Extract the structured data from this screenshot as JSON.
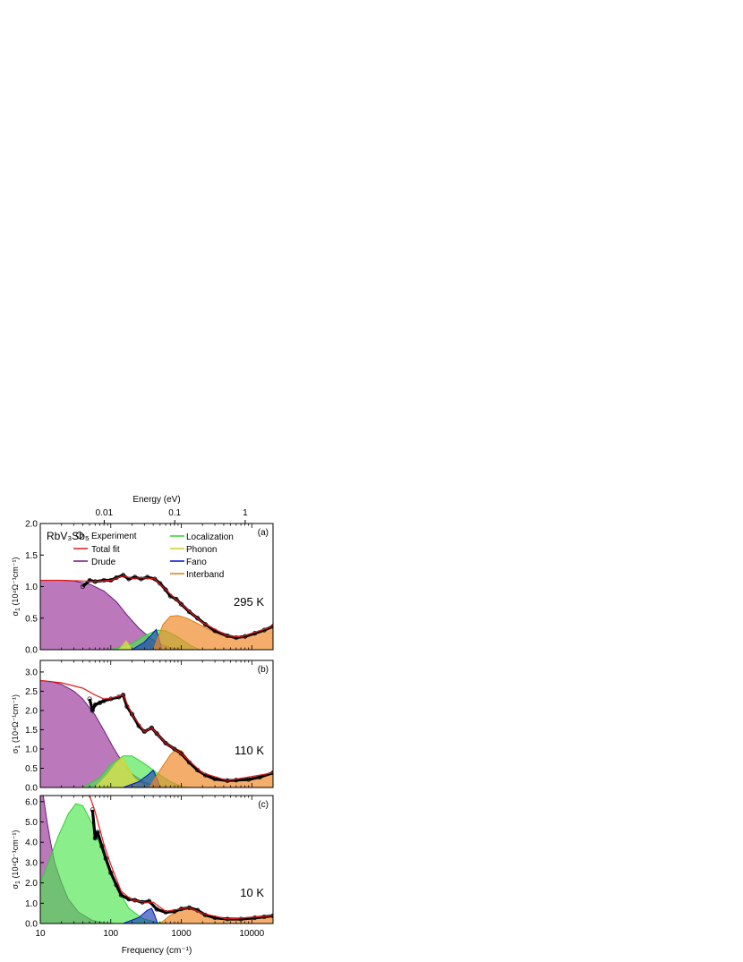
{
  "figure": {
    "top_axis_label": "Energy (eV)",
    "top_ticks": [
      {
        "energy": 0.01,
        "label": "0.01"
      },
      {
        "energy": 0.1,
        "label": "0.1"
      },
      {
        "energy": 1,
        "label": "1"
      }
    ],
    "bottom_axis_label": "Frequency (cm⁻¹)",
    "x_ticks": [
      {
        "value": 10,
        "label": "10"
      },
      {
        "value": 100,
        "label": "100"
      },
      {
        "value": 1000,
        "label": "1000"
      },
      {
        "value": 10000,
        "label": "10000"
      }
    ],
    "sample_label": "RbV₃Sb₅",
    "ylabel_prefix": "σ",
    "ylabel_sub": "1",
    "ylabel_rest": " (10⁴Ω⁻¹cm⁻¹)"
  },
  "legend": {
    "experiment": "Experiment",
    "total_fit": "Total fit",
    "drude": "Drude",
    "localization": "Localization",
    "phonon": "Phonon",
    "fano": "Fano",
    "interband": "Interband"
  },
  "colors": {
    "total_fit": "#e41a1c",
    "drude_fill": "#a44ca6",
    "drude_line": "#6a1b7a",
    "localization_fill": "#4ce64c",
    "localization_line": "#2fd02f",
    "phonon_fill": "#e6e64c",
    "phonon_line": "#d0d020",
    "fano_fill": "#1a3fb0",
    "fano_line": "#0010c8",
    "interband_fill": "#f08a2c",
    "interband_line": "#e07a10"
  },
  "chart_data": [
    {
      "type": "area",
      "panel": "(a)",
      "temperature": "295 K",
      "xlim": [
        10,
        20000
      ],
      "ylim": [
        0,
        2.0
      ],
      "yticks": [
        "0.0",
        "0.5",
        "1.0",
        "1.5",
        "2.0"
      ],
      "experiment": [
        [
          40,
          1.0
        ],
        [
          50,
          1.1
        ],
        [
          60,
          1.08
        ],
        [
          80,
          1.1
        ],
        [
          100,
          1.1
        ],
        [
          120,
          1.14
        ],
        [
          150,
          1.18
        ],
        [
          180,
          1.12
        ],
        [
          220,
          1.15
        ],
        [
          270,
          1.12
        ],
        [
          330,
          1.15
        ],
        [
          420,
          1.12
        ],
        [
          500,
          1.05
        ],
        [
          600,
          0.95
        ],
        [
          700,
          0.85
        ],
        [
          850,
          0.8
        ],
        [
          1000,
          0.72
        ],
        [
          1300,
          0.6
        ],
        [
          1700,
          0.5
        ],
        [
          2200,
          0.4
        ],
        [
          3000,
          0.3
        ],
        [
          4500,
          0.22
        ],
        [
          6000,
          0.19
        ],
        [
          8000,
          0.21
        ],
        [
          11000,
          0.26
        ],
        [
          15000,
          0.31
        ],
        [
          20000,
          0.37
        ]
      ],
      "total_fit": [
        [
          10,
          1.1
        ],
        [
          20,
          1.1
        ],
        [
          40,
          1.09
        ],
        [
          60,
          1.08
        ],
        [
          100,
          1.1
        ],
        [
          150,
          1.17
        ],
        [
          200,
          1.13
        ],
        [
          300,
          1.14
        ],
        [
          420,
          1.12
        ],
        [
          600,
          0.95
        ],
        [
          1000,
          0.72
        ],
        [
          2000,
          0.43
        ],
        [
          4500,
          0.22
        ],
        [
          7000,
          0.2
        ],
        [
          20000,
          0.37
        ]
      ],
      "components": {
        "drude": [
          [
            10,
            1.1
          ],
          [
            20,
            1.1
          ],
          [
            30,
            1.09
          ],
          [
            50,
            1.04
          ],
          [
            80,
            0.93
          ],
          [
            120,
            0.76
          ],
          [
            170,
            0.55
          ],
          [
            250,
            0.34
          ],
          [
            380,
            0.17
          ],
          [
            550,
            0.07
          ],
          [
            800,
            0.02
          ],
          [
            1200,
            0.0
          ]
        ],
        "localization": [
          [
            100,
            0.0
          ],
          [
            200,
            0.1
          ],
          [
            300,
            0.22
          ],
          [
            450,
            0.31
          ],
          [
            600,
            0.3
          ],
          [
            900,
            0.2
          ],
          [
            1300,
            0.08
          ],
          [
            1800,
            0.0
          ]
        ],
        "phonon": [
          [
            130,
            0.0
          ],
          [
            150,
            0.08
          ],
          [
            165,
            0.14
          ],
          [
            180,
            0.08
          ],
          [
            200,
            0.0
          ]
        ],
        "fano": [
          [
            200,
            0.0
          ],
          [
            300,
            0.12
          ],
          [
            380,
            0.24
          ],
          [
            440,
            0.32
          ],
          [
            490,
            0.15
          ],
          [
            530,
            0.0
          ]
        ],
        "interband": [
          [
            400,
            0.0
          ],
          [
            550,
            0.4
          ],
          [
            700,
            0.53
          ],
          [
            900,
            0.54
          ],
          [
            1200,
            0.5
          ],
          [
            1600,
            0.43
          ],
          [
            2200,
            0.35
          ],
          [
            3000,
            0.27
          ],
          [
            4500,
            0.2
          ],
          [
            6000,
            0.18
          ],
          [
            8000,
            0.21
          ],
          [
            11000,
            0.26
          ],
          [
            15000,
            0.31
          ],
          [
            20000,
            0.37
          ]
        ]
      }
    },
    {
      "type": "area",
      "panel": "(b)",
      "temperature": "110 K",
      "xlim": [
        10,
        20000
      ],
      "ylim": [
        0,
        3.3
      ],
      "yticks": [
        "0.0",
        "0.5",
        "1.0",
        "1.5",
        "2.0",
        "2.5",
        "3.0"
      ],
      "experiment": [
        [
          50,
          2.3
        ],
        [
          55,
          2.0
        ],
        [
          60,
          2.15
        ],
        [
          70,
          2.2
        ],
        [
          80,
          2.25
        ],
        [
          100,
          2.3
        ],
        [
          130,
          2.35
        ],
        [
          150,
          2.4
        ],
        [
          170,
          2.1
        ],
        [
          200,
          1.9
        ],
        [
          250,
          1.6
        ],
        [
          300,
          1.45
        ],
        [
          380,
          1.55
        ],
        [
          450,
          1.4
        ],
        [
          600,
          1.15
        ],
        [
          800,
          1.0
        ],
        [
          1000,
          0.88
        ],
        [
          1300,
          0.65
        ],
        [
          1700,
          0.45
        ],
        [
          2200,
          0.32
        ],
        [
          3000,
          0.22
        ],
        [
          4500,
          0.18
        ],
        [
          6000,
          0.19
        ],
        [
          9000,
          0.21
        ],
        [
          13000,
          0.27
        ],
        [
          20000,
          0.38
        ]
      ],
      "total_fit": [
        [
          10,
          2.78
        ],
        [
          20,
          2.72
        ],
        [
          40,
          2.58
        ],
        [
          60,
          2.4
        ],
        [
          80,
          2.3
        ],
        [
          100,
          2.32
        ],
        [
          150,
          2.4
        ],
        [
          200,
          1.9
        ],
        [
          300,
          1.45
        ],
        [
          380,
          1.55
        ],
        [
          600,
          1.15
        ],
        [
          1000,
          0.88
        ],
        [
          2000,
          0.38
        ],
        [
          4500,
          0.18
        ],
        [
          20000,
          0.38
        ]
      ],
      "components": {
        "drude": [
          [
            10,
            2.78
          ],
          [
            15,
            2.74
          ],
          [
            20,
            2.68
          ],
          [
            30,
            2.5
          ],
          [
            40,
            2.3
          ],
          [
            60,
            1.88
          ],
          [
            80,
            1.48
          ],
          [
            110,
            1.02
          ],
          [
            150,
            0.62
          ],
          [
            200,
            0.35
          ],
          [
            300,
            0.13
          ],
          [
            500,
            0.02
          ],
          [
            700,
            0.0
          ]
        ],
        "localization": [
          [
            40,
            0.0
          ],
          [
            70,
            0.25
          ],
          [
            100,
            0.6
          ],
          [
            150,
            0.82
          ],
          [
            200,
            0.82
          ],
          [
            300,
            0.62
          ],
          [
            450,
            0.38
          ],
          [
            700,
            0.15
          ],
          [
            1000,
            0.03
          ],
          [
            1300,
            0.0
          ]
        ],
        "phonon": [
          [
            60,
            0.0
          ],
          [
            90,
            0.35
          ],
          [
            120,
            0.65
          ],
          [
            145,
            0.78
          ],
          [
            170,
            0.55
          ],
          [
            220,
            0.22
          ],
          [
            300,
            0.05
          ],
          [
            400,
            0.0
          ]
        ],
        "fano": [
          [
            150,
            0.0
          ],
          [
            250,
            0.15
          ],
          [
            350,
            0.35
          ],
          [
            400,
            0.45
          ],
          [
            460,
            0.2
          ],
          [
            500,
            0.0
          ]
        ],
        "interband": [
          [
            350,
            0.0
          ],
          [
            500,
            0.45
          ],
          [
            700,
            0.85
          ],
          [
            850,
            1.0
          ],
          [
            1000,
            0.95
          ],
          [
            1300,
            0.7
          ],
          [
            1700,
            0.48
          ],
          [
            2200,
            0.33
          ],
          [
            3000,
            0.22
          ],
          [
            4500,
            0.17
          ],
          [
            6000,
            0.18
          ],
          [
            9000,
            0.21
          ],
          [
            13000,
            0.27
          ],
          [
            20000,
            0.38
          ]
        ]
      }
    },
    {
      "type": "area",
      "panel": "(c)",
      "temperature": "10 K",
      "xlim": [
        10,
        20000
      ],
      "ylim": [
        0,
        6.3
      ],
      "yticks": [
        "0.0",
        "1.0",
        "2.0",
        "3.0",
        "4.0",
        "5.0",
        "6.0"
      ],
      "experiment": [
        [
          55,
          5.6
        ],
        [
          60,
          4.2
        ],
        [
          65,
          4.5
        ],
        [
          75,
          3.8
        ],
        [
          85,
          3.2
        ],
        [
          100,
          2.5
        ],
        [
          120,
          1.9
        ],
        [
          140,
          1.4
        ],
        [
          180,
          1.2
        ],
        [
          220,
          1.15
        ],
        [
          280,
          1.05
        ],
        [
          350,
          1.1
        ],
        [
          450,
          0.7
        ],
        [
          600,
          0.55
        ],
        [
          800,
          0.6
        ],
        [
          1000,
          0.72
        ],
        [
          1300,
          0.78
        ],
        [
          1700,
          0.65
        ],
        [
          2200,
          0.42
        ],
        [
          3000,
          0.28
        ],
        [
          4500,
          0.22
        ],
        [
          7000,
          0.22
        ],
        [
          11000,
          0.28
        ],
        [
          15000,
          0.33
        ],
        [
          20000,
          0.38
        ]
      ],
      "total_fit": [
        [
          40,
          7.2
        ],
        [
          50,
          6.5
        ],
        [
          60,
          5.5
        ],
        [
          80,
          3.9
        ],
        [
          100,
          2.9
        ],
        [
          140,
          1.6
        ],
        [
          200,
          1.15
        ],
        [
          300,
          1.05
        ],
        [
          400,
          1.05
        ],
        [
          600,
          0.6
        ],
        [
          1000,
          0.72
        ],
        [
          1300,
          0.78
        ],
        [
          2000,
          0.5
        ],
        [
          4500,
          0.22
        ],
        [
          20000,
          0.38
        ]
      ],
      "components": {
        "drude": [
          [
            10,
            8.5
          ],
          [
            11,
            6.5
          ],
          [
            12.5,
            5.0
          ],
          [
            14,
            4.0
          ],
          [
            16,
            3.0
          ],
          [
            20,
            2.0
          ],
          [
            25,
            1.2
          ],
          [
            35,
            0.55
          ],
          [
            55,
            0.15
          ],
          [
            80,
            0.03
          ],
          [
            120,
            0.0
          ]
        ],
        "localization": [
          [
            10,
            2.0
          ],
          [
            13,
            3.0
          ],
          [
            18,
            4.3
          ],
          [
            25,
            5.4
          ],
          [
            32,
            5.9
          ],
          [
            40,
            5.8
          ],
          [
            55,
            4.9
          ],
          [
            80,
            3.3
          ],
          [
            120,
            1.8
          ],
          [
            180,
            0.75
          ],
          [
            280,
            0.25
          ],
          [
            450,
            0.05
          ],
          [
            700,
            0.0
          ]
        ],
        "phonon": [],
        "fano": [
          [
            150,
            0.0
          ],
          [
            250,
            0.3
          ],
          [
            330,
            0.65
          ],
          [
            380,
            0.75
          ],
          [
            420,
            0.4
          ],
          [
            460,
            0.0
          ]
        ],
        "interband": [
          [
            500,
            0.0
          ],
          [
            700,
            0.4
          ],
          [
            1000,
            0.7
          ],
          [
            1300,
            0.78
          ],
          [
            1700,
            0.65
          ],
          [
            2200,
            0.42
          ],
          [
            3000,
            0.28
          ],
          [
            4500,
            0.22
          ],
          [
            7000,
            0.22
          ],
          [
            11000,
            0.28
          ],
          [
            15000,
            0.33
          ],
          [
            20000,
            0.38
          ]
        ]
      }
    }
  ]
}
